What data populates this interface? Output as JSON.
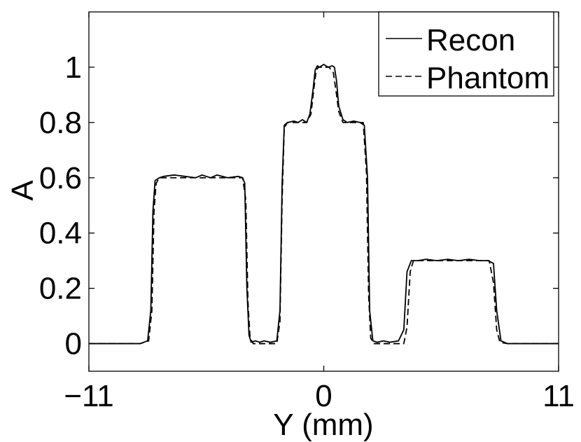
{
  "chart_data": {
    "type": "line",
    "title": "",
    "xlabel": "Y (mm)",
    "ylabel": "A",
    "xlim": [
      -11,
      11
    ],
    "ylim": [
      -0.1,
      1.2
    ],
    "xticks": [
      -11,
      0,
      11
    ],
    "xtick_labels": [
      "−11",
      "0",
      "11"
    ],
    "yticks": [
      0,
      0.2,
      0.4,
      0.6,
      0.8,
      1
    ],
    "ytick_labels": [
      "0",
      "0.2",
      "0.4",
      "0.6",
      "0.8",
      "1"
    ],
    "grid": false,
    "legend_position": "top-right",
    "series": [
      {
        "name": "Recon",
        "line_style": "solid",
        "color": "#000000",
        "x": [
          -11,
          -8.6,
          -8.25,
          -8.1,
          -8.0,
          -7.9,
          -7.7,
          -7.5,
          -7.0,
          -6.5,
          -6.0,
          -5.7,
          -5.5,
          -5.3,
          -5.0,
          -4.5,
          -4.0,
          -3.8,
          -3.7,
          -3.6,
          -3.5,
          -3.4,
          -3.2,
          -3.0,
          -2.8,
          -2.5,
          -2.2,
          -2.05,
          -1.95,
          -1.85,
          -1.7,
          -1.4,
          -1.2,
          -1.0,
          -0.8,
          -0.65,
          -0.5,
          -0.4,
          -0.3,
          -0.2,
          0.0,
          0.2,
          0.4,
          0.5,
          0.6,
          0.7,
          0.9,
          1.1,
          1.4,
          1.7,
          1.9,
          2.05,
          2.15,
          2.3,
          2.5,
          2.8,
          3.1,
          3.5,
          3.75,
          3.9,
          4.1,
          4.4,
          4.8,
          5.3,
          5.8,
          6.3,
          6.8,
          7.3,
          7.7,
          7.95,
          8.1,
          8.3,
          8.6,
          11
        ],
        "y": [
          0,
          0,
          0.01,
          0.12,
          0.48,
          0.59,
          0.6,
          0.605,
          0.61,
          0.605,
          0.6,
          0.61,
          0.605,
          0.6,
          0.61,
          0.6,
          0.605,
          0.6,
          0.58,
          0.2,
          0.03,
          0.005,
          0.01,
          0.005,
          0.01,
          0.005,
          0.01,
          0.12,
          0.58,
          0.79,
          0.8,
          0.805,
          0.8,
          0.81,
          0.8,
          0.83,
          0.92,
          0.99,
          1.005,
          1.0,
          1.01,
          1.0,
          1.005,
          1.0,
          0.95,
          0.86,
          0.81,
          0.8,
          0.805,
          0.8,
          0.79,
          0.6,
          0.12,
          0.01,
          0.005,
          0.01,
          0.005,
          0.01,
          0.05,
          0.26,
          0.3,
          0.3,
          0.305,
          0.3,
          0.305,
          0.3,
          0.305,
          0.3,
          0.3,
          0.29,
          0.12,
          0.01,
          0.0,
          0
        ]
      },
      {
        "name": "Phantom",
        "line_style": "dashed",
        "color": "#000000",
        "x": [
          -11,
          -8.6,
          -8.2,
          -8.05,
          -7.95,
          -7.85,
          -7.7,
          -3.8,
          -3.65,
          -3.55,
          -3.45,
          -3.3,
          -2.2,
          -2.05,
          -1.95,
          -1.85,
          -1.7,
          -0.8,
          -0.6,
          -0.45,
          -0.35,
          -0.25,
          0.25,
          0.45,
          0.6,
          0.7,
          0.9,
          1.85,
          2.0,
          2.1,
          2.2,
          2.35,
          3.75,
          3.9,
          4.05,
          4.2,
          7.75,
          7.95,
          8.1,
          8.25,
          8.6,
          11
        ],
        "y": [
          0,
          0,
          0.01,
          0.12,
          0.48,
          0.58,
          0.6,
          0.6,
          0.52,
          0.15,
          0.02,
          0,
          0,
          0.08,
          0.52,
          0.78,
          0.8,
          0.8,
          0.83,
          0.93,
          0.99,
          1.0,
          1.0,
          0.98,
          0.9,
          0.84,
          0.8,
          0.8,
          0.62,
          0.18,
          0.02,
          0,
          0,
          0.06,
          0.26,
          0.3,
          0.3,
          0.22,
          0.05,
          0.005,
          0,
          0
        ]
      }
    ]
  }
}
